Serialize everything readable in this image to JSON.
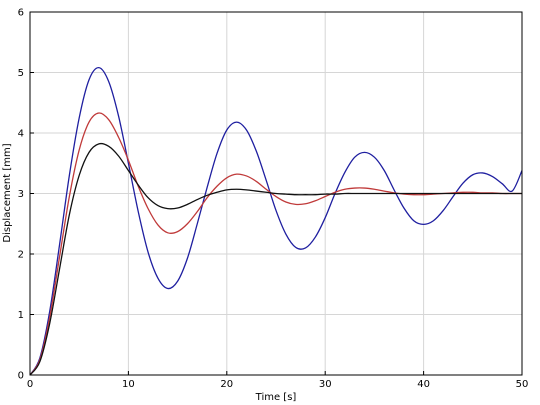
{
  "chart_data": {
    "type": "line",
    "title": "",
    "xlabel": "Time [s]",
    "ylabel": "Displacement [mm]",
    "xlim": [
      0,
      50
    ],
    "ylim": [
      0,
      6
    ],
    "xticks": [
      0,
      10,
      20,
      30,
      40,
      50
    ],
    "yticks": [
      0,
      1,
      2,
      3,
      4,
      5,
      6
    ],
    "grid": true,
    "legend": "none",
    "series": [
      {
        "color": "#1f1fa0",
        "x": [
          0,
          1,
          2,
          3,
          4,
          5,
          6,
          7,
          8,
          9,
          10,
          11,
          12,
          13,
          14,
          15,
          16,
          17,
          18,
          19,
          20,
          21,
          22,
          23,
          24,
          25,
          26,
          27,
          28,
          29,
          30,
          31,
          32,
          33,
          34,
          35,
          36,
          37,
          38,
          39,
          40,
          41,
          42,
          43,
          44,
          45,
          46,
          47,
          48,
          49,
          50
        ],
        "values": [
          0,
          0.28,
          1.05,
          2.15,
          3.3,
          4.25,
          4.88,
          5.08,
          4.85,
          4.28,
          3.5,
          2.7,
          2.03,
          1.6,
          1.43,
          1.55,
          1.93,
          2.5,
          3.1,
          3.66,
          4.05,
          4.18,
          4.05,
          3.7,
          3.22,
          2.72,
          2.33,
          2.11,
          2.1,
          2.28,
          2.6,
          3.0,
          3.35,
          3.6,
          3.68,
          3.6,
          3.38,
          3.06,
          2.76,
          2.55,
          2.49,
          2.55,
          2.72,
          2.95,
          3.17,
          3.31,
          3.34,
          3.28,
          3.16,
          3.04,
          3.38
        ]
      },
      {
        "color": "#c03a3a",
        "x": [
          0,
          1,
          2,
          3,
          4,
          5,
          6,
          7,
          8,
          9,
          10,
          11,
          12,
          13,
          14,
          15,
          16,
          17,
          18,
          19,
          20,
          21,
          22,
          23,
          24,
          25,
          26,
          27,
          28,
          29,
          30,
          31,
          32,
          33,
          34,
          35,
          36,
          37,
          38,
          39,
          40,
          41,
          42,
          43,
          44,
          45,
          46,
          47,
          48,
          49,
          50
        ],
        "values": [
          0,
          0.25,
          0.95,
          1.95,
          2.95,
          3.72,
          4.18,
          4.33,
          4.22,
          3.93,
          3.55,
          3.12,
          2.75,
          2.48,
          2.35,
          2.37,
          2.5,
          2.7,
          2.93,
          3.12,
          3.26,
          3.32,
          3.29,
          3.2,
          3.07,
          2.95,
          2.86,
          2.82,
          2.83,
          2.88,
          2.95,
          3.02,
          3.07,
          3.09,
          3.09,
          3.07,
          3.04,
          3.01,
          2.99,
          2.98,
          2.98,
          2.99,
          3.0,
          3.01,
          3.02,
          3.02,
          3.01,
          3.01,
          3.0,
          3.0,
          3.0
        ]
      },
      {
        "color": "#111111",
        "x": [
          0,
          1,
          2,
          3,
          4,
          5,
          6,
          7,
          8,
          9,
          10,
          11,
          12,
          13,
          14,
          15,
          16,
          17,
          18,
          19,
          20,
          21,
          22,
          23,
          24,
          25,
          26,
          27,
          28,
          29,
          30,
          31,
          32,
          33,
          34,
          35,
          36,
          37,
          38,
          39,
          40,
          41,
          42,
          43,
          44,
          45,
          46,
          47,
          48,
          49,
          50
        ],
        "values": [
          0,
          0.22,
          0.85,
          1.75,
          2.65,
          3.3,
          3.68,
          3.82,
          3.78,
          3.62,
          3.38,
          3.14,
          2.93,
          2.8,
          2.75,
          2.76,
          2.82,
          2.9,
          2.97,
          3.02,
          3.06,
          3.07,
          3.06,
          3.04,
          3.02,
          3.0,
          2.99,
          2.98,
          2.98,
          2.98,
          2.99,
          2.99,
          3.0,
          3.0,
          3.0,
          3.0,
          3.0,
          3.0,
          3.0,
          3.0,
          3.0,
          3.0,
          3.0,
          3.0,
          3.0,
          3.0,
          3.0,
          3.0,
          3.0,
          3.0,
          3.0
        ]
      }
    ]
  }
}
